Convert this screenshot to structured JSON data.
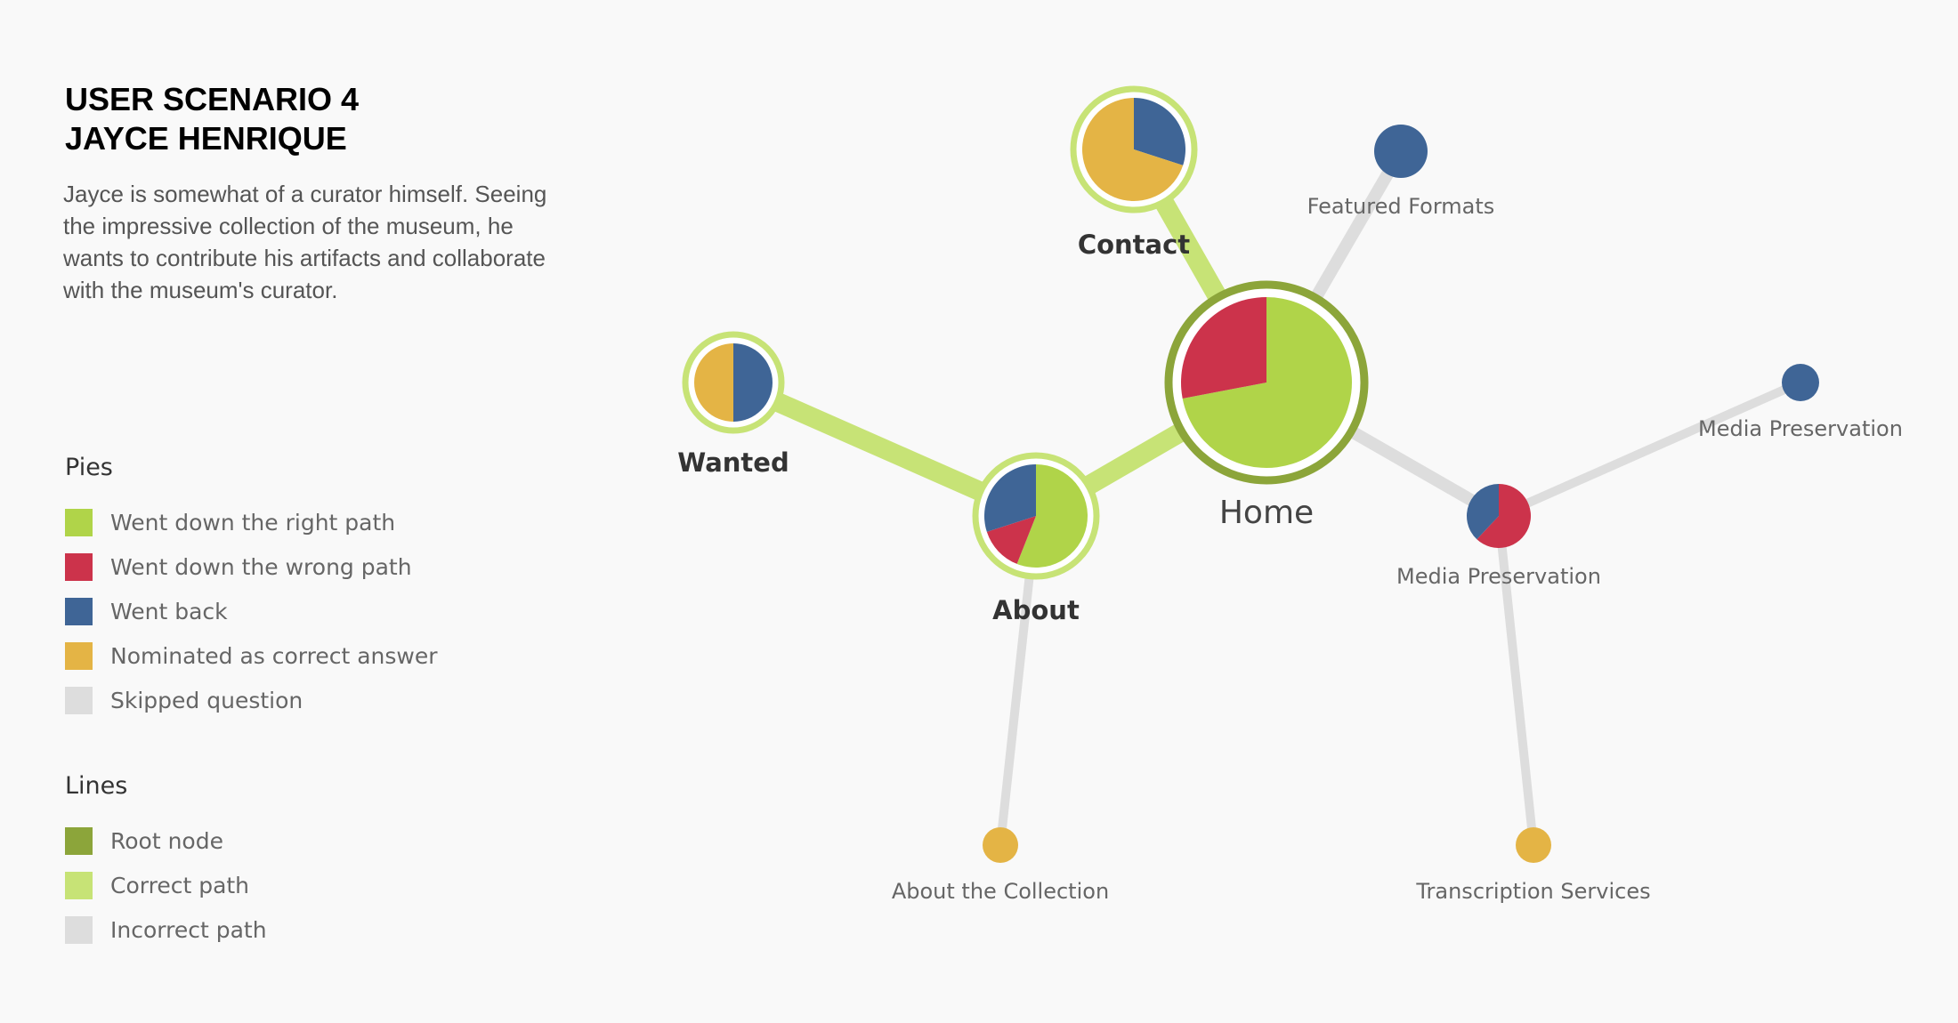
{
  "header": {
    "title_line1": "USER SCENARIO 4",
    "title_line2": "JAYCE HENRIQUE",
    "description": "Jayce is somewhat of a curator himself. Seeing the impressive collection of the museum, he wants to contribute his artifacts and collaborate with the museum's curator."
  },
  "legend": {
    "pies_heading": "Pies",
    "pies": [
      {
        "label": "Went down the right path",
        "color": "#b0d449"
      },
      {
        "label": "Went down the wrong path",
        "color": "#cc334b"
      },
      {
        "label": "Went back",
        "color": "#3f6596"
      },
      {
        "label": "Nominated as correct answer",
        "color": "#e4b445"
      },
      {
        "label": "Skipped question",
        "color": "#dddddd"
      }
    ],
    "lines_heading": "Lines",
    "lines": [
      {
        "label": "Root node",
        "color": "#8ca53a"
      },
      {
        "label": "Correct path",
        "color": "#c7e376"
      },
      {
        "label": "Incorrect path",
        "color": "#dddddd"
      }
    ]
  },
  "colors": {
    "right": "#b0d449",
    "wrong": "#cc334b",
    "back": "#3f6596",
    "nominated": "#e4b445",
    "skipped": "#dddddd",
    "root": "#8ca53a",
    "correct_line": "#c7e376",
    "incorrect_line": "#dddddd"
  },
  "nodes": [
    {
      "id": "home",
      "label": "Home",
      "root": true,
      "ring": true,
      "pie": [
        {
          "cat": "right",
          "value": 0.72
        },
        {
          "cat": "wrong",
          "value": 0.28
        }
      ]
    },
    {
      "id": "contact",
      "label": "Contact",
      "ring": true,
      "pie": [
        {
          "cat": "back",
          "value": 0.3
        },
        {
          "cat": "nominated",
          "value": 0.7
        }
      ]
    },
    {
      "id": "featured",
      "label": "Featured Formats",
      "pie": [
        {
          "cat": "back",
          "value": 1
        }
      ]
    },
    {
      "id": "wanted",
      "label": "Wanted",
      "ring": true,
      "pie": [
        {
          "cat": "back",
          "value": 0.5
        },
        {
          "cat": "nominated",
          "value": 0.5
        }
      ]
    },
    {
      "id": "about",
      "label": "About",
      "ring": true,
      "pie": [
        {
          "cat": "right",
          "value": 0.56
        },
        {
          "cat": "wrong",
          "value": 0.14
        },
        {
          "cat": "back",
          "value": 0.3
        }
      ]
    },
    {
      "id": "mediapres",
      "label": "Media Preservation",
      "pie": [
        {
          "cat": "wrong",
          "value": 0.62
        },
        {
          "cat": "back",
          "value": 0.38
        }
      ]
    },
    {
      "id": "mediapres2",
      "label": "Media Preservation",
      "pie": [
        {
          "cat": "back",
          "value": 1
        }
      ]
    },
    {
      "id": "aboutcoll",
      "label": "About the Collection",
      "pie": [
        {
          "cat": "nominated",
          "value": 1
        }
      ]
    },
    {
      "id": "transcription",
      "label": "Transcription Services",
      "pie": [
        {
          "cat": "nominated",
          "value": 1
        }
      ]
    }
  ],
  "edges": [
    {
      "from": "home",
      "to": "contact",
      "type": "correct"
    },
    {
      "from": "home",
      "to": "about",
      "type": "correct"
    },
    {
      "from": "about",
      "to": "wanted",
      "type": "correct"
    },
    {
      "from": "home",
      "to": "featured",
      "type": "incorrect"
    },
    {
      "from": "home",
      "to": "mediapres",
      "type": "incorrect"
    },
    {
      "from": "mediapres",
      "to": "mediapres2",
      "type": "incorrect"
    },
    {
      "from": "mediapres",
      "to": "transcription",
      "type": "incorrect"
    },
    {
      "from": "about",
      "to": "aboutcoll",
      "type": "incorrect"
    }
  ]
}
